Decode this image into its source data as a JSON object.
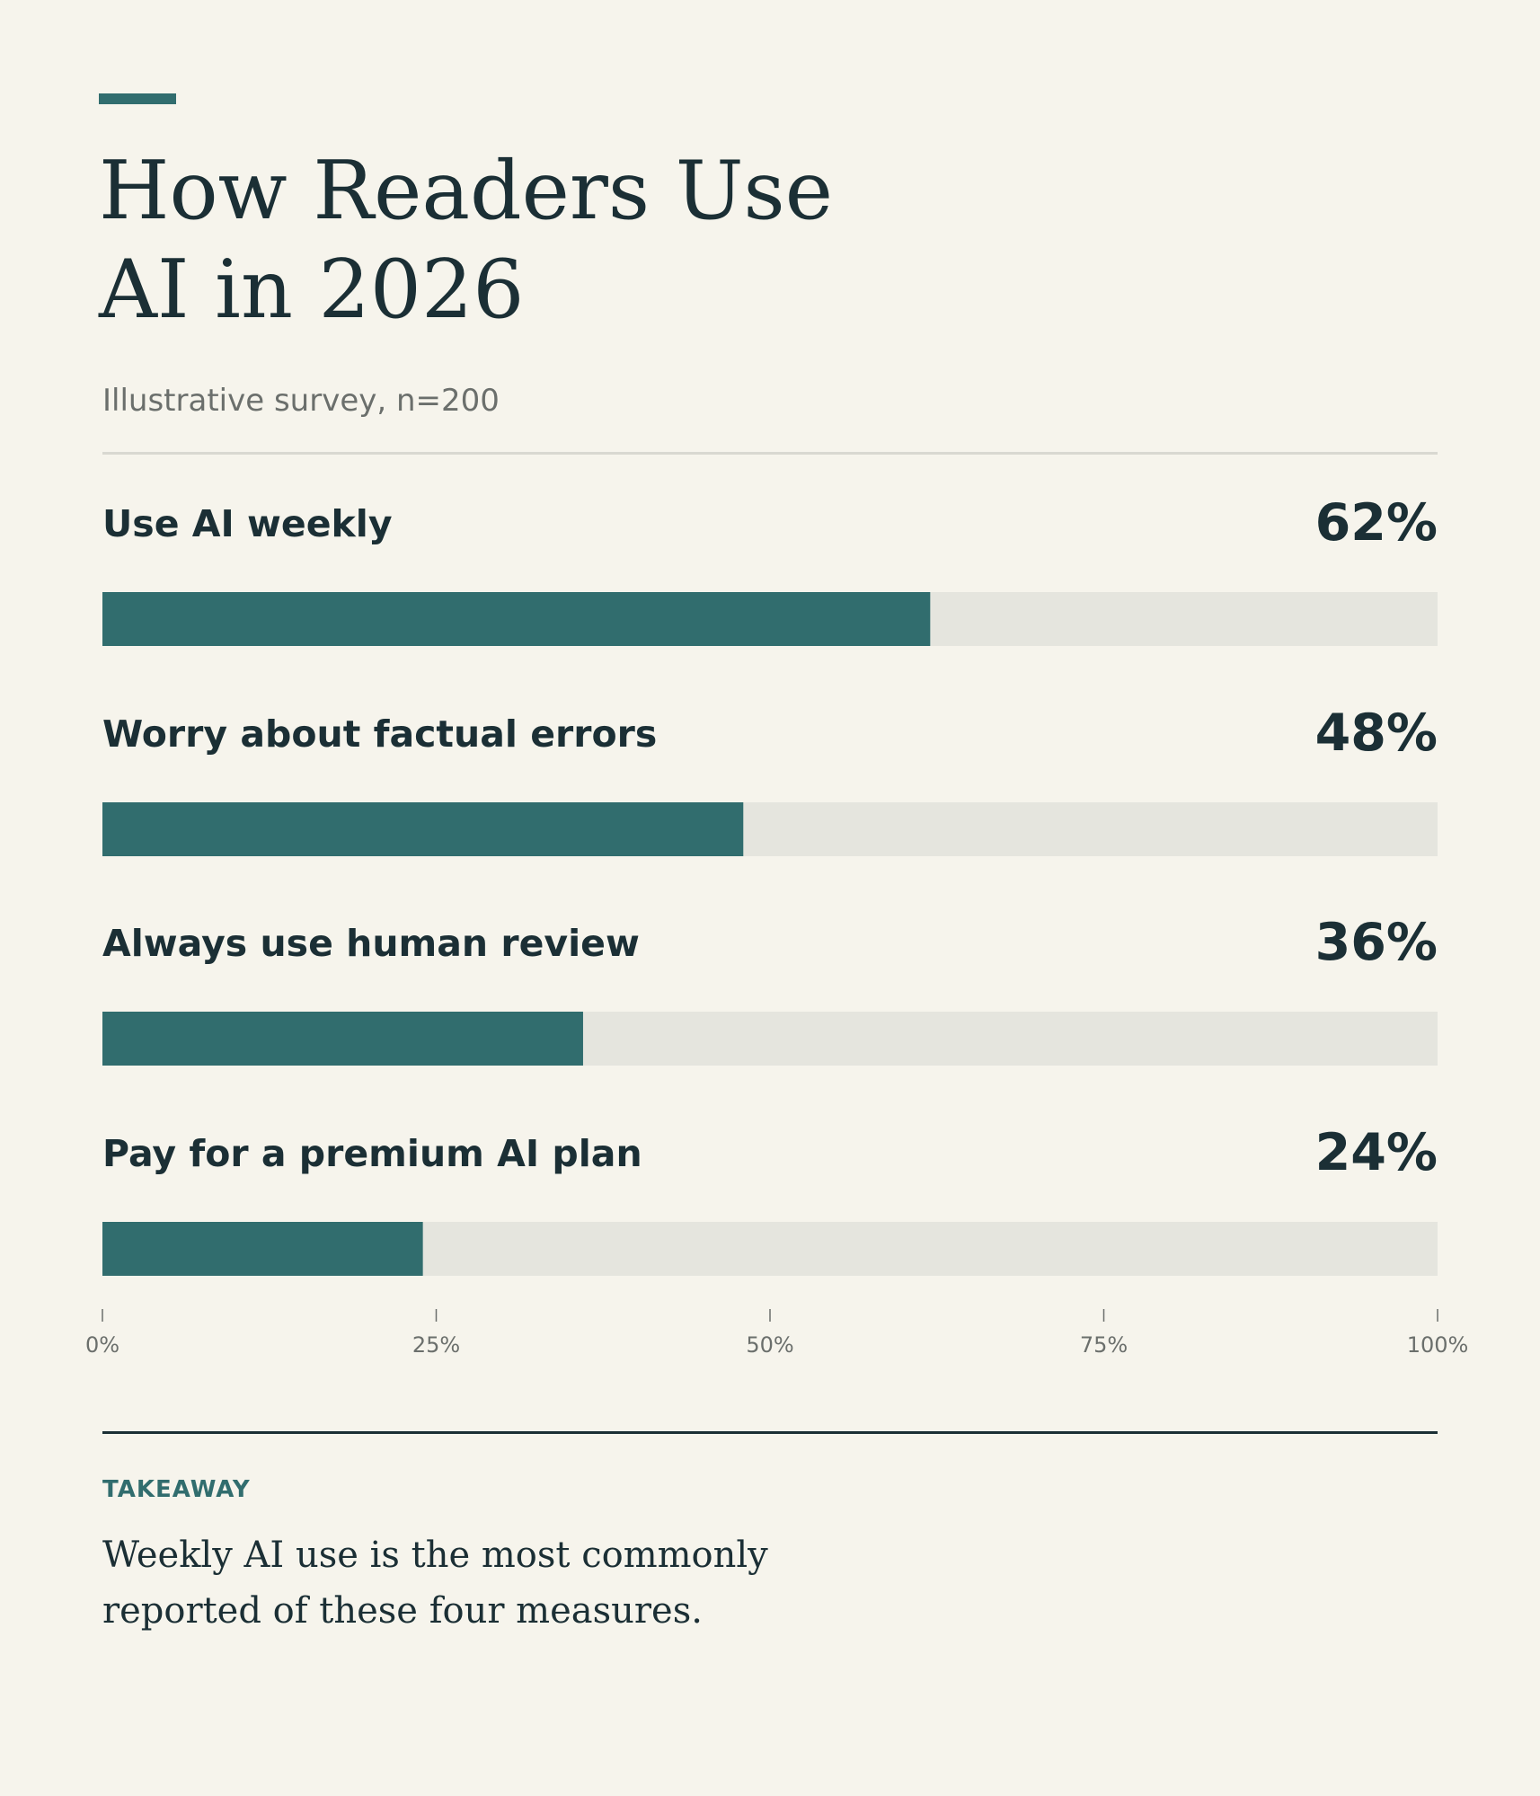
{
  "header": {
    "title_line1": "How Readers Use",
    "title_line2": "AI in 2026",
    "subtitle": "Illustrative survey, n=200"
  },
  "colors": {
    "background": "#f6f4ec",
    "bar_fill": "#316d6e",
    "track": "#e5e5de",
    "text": "#1b2f35",
    "muted": "#6b6f6c"
  },
  "chart_data": {
    "type": "bar",
    "orientation": "horizontal",
    "categories": [
      "Use AI weekly",
      "Worry about factual errors",
      "Always use human review",
      "Pay for a premium AI plan"
    ],
    "values": [
      62,
      48,
      36,
      24
    ],
    "value_labels": [
      "62%",
      "48%",
      "36%",
      "24%"
    ],
    "xlim": [
      0,
      100
    ],
    "ticks": [
      0,
      25,
      50,
      75,
      100
    ],
    "tick_labels": [
      "0%",
      "25%",
      "50%",
      "75%",
      "100%"
    ],
    "grid": false,
    "legend": "none"
  },
  "takeaway": {
    "label": "TAKEAWAY",
    "text_line1": "Weekly AI use is the most commonly",
    "text_line2": "reported of these four measures."
  }
}
